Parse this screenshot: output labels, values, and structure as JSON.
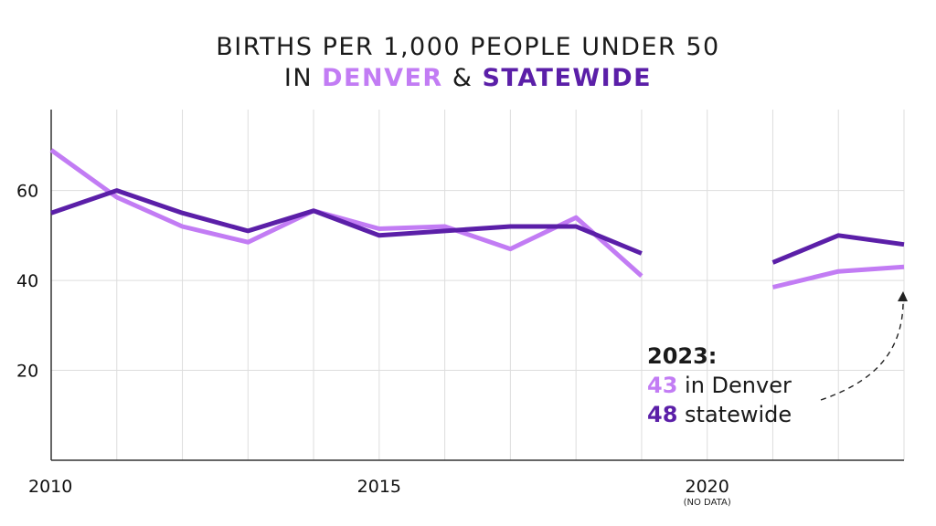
{
  "title": {
    "line1": "BIRTHS PER 1,000 PEOPLE UNDER 50",
    "line2_prefix": "IN ",
    "line2_denver": "DENVER",
    "line2_amp": " & ",
    "line2_state": "STATEWIDE"
  },
  "annotation": {
    "heading": "2023:",
    "denver_value": "43",
    "denver_text": " in Denver",
    "state_value": "48",
    "state_text": " statewide"
  },
  "colors": {
    "denver": "#c27cf4",
    "statewide": "#5b1fa8",
    "grid": "#dddddd",
    "axis": "#333333"
  },
  "chart_data": {
    "type": "line",
    "title": "BIRTHS PER 1,000 PEOPLE UNDER 50 IN DENVER & STATEWIDE",
    "xlabel": "",
    "ylabel": "",
    "xlim": [
      2010,
      2023
    ],
    "ylim": [
      0,
      78
    ],
    "x_ticks": [
      2010,
      2015,
      2020
    ],
    "x_tick_labels": [
      "2010",
      "2015",
      "2020"
    ],
    "x_tick_note": "(NO DATA)",
    "y_ticks": [
      20,
      40,
      60
    ],
    "y_tick_labels": [
      "20",
      "40",
      "60"
    ],
    "grid": true,
    "x": [
      2010,
      2011,
      2012,
      2013,
      2014,
      2015,
      2016,
      2017,
      2018,
      2019,
      2020,
      2021,
      2022,
      2023
    ],
    "series": [
      {
        "name": "DENVER",
        "color": "#c27cf4",
        "values": [
          69,
          58.5,
          52,
          48.5,
          55.5,
          51.5,
          52,
          47,
          54,
          41,
          null,
          38.5,
          42,
          43
        ]
      },
      {
        "name": "STATEWIDE",
        "color": "#5b1fa8",
        "values": [
          55,
          60,
          55,
          51,
          55.5,
          50,
          51,
          52,
          52,
          46,
          null,
          44,
          50,
          48
        ]
      }
    ]
  }
}
